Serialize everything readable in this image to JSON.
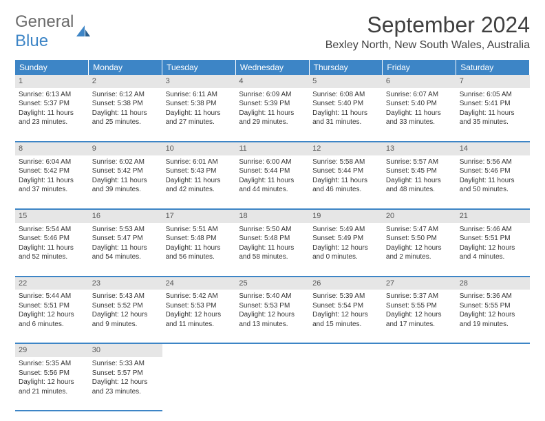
{
  "logo": {
    "word1": "General",
    "word2": "Blue"
  },
  "title": "September 2024",
  "location": "Bexley North, New South Wales, Australia",
  "colors": {
    "header_bg": "#3d85c6",
    "header_fg": "#ffffff",
    "daynum_bg": "#e6e6e6",
    "text": "#333333",
    "title_color": "#404040"
  },
  "dayNames": [
    "Sunday",
    "Monday",
    "Tuesday",
    "Wednesday",
    "Thursday",
    "Friday",
    "Saturday"
  ],
  "weeks": [
    [
      {
        "n": "1",
        "sr": "Sunrise: 6:13 AM",
        "ss": "Sunset: 5:37 PM",
        "d1": "Daylight: 11 hours",
        "d2": "and 23 minutes."
      },
      {
        "n": "2",
        "sr": "Sunrise: 6:12 AM",
        "ss": "Sunset: 5:38 PM",
        "d1": "Daylight: 11 hours",
        "d2": "and 25 minutes."
      },
      {
        "n": "3",
        "sr": "Sunrise: 6:11 AM",
        "ss": "Sunset: 5:38 PM",
        "d1": "Daylight: 11 hours",
        "d2": "and 27 minutes."
      },
      {
        "n": "4",
        "sr": "Sunrise: 6:09 AM",
        "ss": "Sunset: 5:39 PM",
        "d1": "Daylight: 11 hours",
        "d2": "and 29 minutes."
      },
      {
        "n": "5",
        "sr": "Sunrise: 6:08 AM",
        "ss": "Sunset: 5:40 PM",
        "d1": "Daylight: 11 hours",
        "d2": "and 31 minutes."
      },
      {
        "n": "6",
        "sr": "Sunrise: 6:07 AM",
        "ss": "Sunset: 5:40 PM",
        "d1": "Daylight: 11 hours",
        "d2": "and 33 minutes."
      },
      {
        "n": "7",
        "sr": "Sunrise: 6:05 AM",
        "ss": "Sunset: 5:41 PM",
        "d1": "Daylight: 11 hours",
        "d2": "and 35 minutes."
      }
    ],
    [
      {
        "n": "8",
        "sr": "Sunrise: 6:04 AM",
        "ss": "Sunset: 5:42 PM",
        "d1": "Daylight: 11 hours",
        "d2": "and 37 minutes."
      },
      {
        "n": "9",
        "sr": "Sunrise: 6:02 AM",
        "ss": "Sunset: 5:42 PM",
        "d1": "Daylight: 11 hours",
        "d2": "and 39 minutes."
      },
      {
        "n": "10",
        "sr": "Sunrise: 6:01 AM",
        "ss": "Sunset: 5:43 PM",
        "d1": "Daylight: 11 hours",
        "d2": "and 42 minutes."
      },
      {
        "n": "11",
        "sr": "Sunrise: 6:00 AM",
        "ss": "Sunset: 5:44 PM",
        "d1": "Daylight: 11 hours",
        "d2": "and 44 minutes."
      },
      {
        "n": "12",
        "sr": "Sunrise: 5:58 AM",
        "ss": "Sunset: 5:44 PM",
        "d1": "Daylight: 11 hours",
        "d2": "and 46 minutes."
      },
      {
        "n": "13",
        "sr": "Sunrise: 5:57 AM",
        "ss": "Sunset: 5:45 PM",
        "d1": "Daylight: 11 hours",
        "d2": "and 48 minutes."
      },
      {
        "n": "14",
        "sr": "Sunrise: 5:56 AM",
        "ss": "Sunset: 5:46 PM",
        "d1": "Daylight: 11 hours",
        "d2": "and 50 minutes."
      }
    ],
    [
      {
        "n": "15",
        "sr": "Sunrise: 5:54 AM",
        "ss": "Sunset: 5:46 PM",
        "d1": "Daylight: 11 hours",
        "d2": "and 52 minutes."
      },
      {
        "n": "16",
        "sr": "Sunrise: 5:53 AM",
        "ss": "Sunset: 5:47 PM",
        "d1": "Daylight: 11 hours",
        "d2": "and 54 minutes."
      },
      {
        "n": "17",
        "sr": "Sunrise: 5:51 AM",
        "ss": "Sunset: 5:48 PM",
        "d1": "Daylight: 11 hours",
        "d2": "and 56 minutes."
      },
      {
        "n": "18",
        "sr": "Sunrise: 5:50 AM",
        "ss": "Sunset: 5:48 PM",
        "d1": "Daylight: 11 hours",
        "d2": "and 58 minutes."
      },
      {
        "n": "19",
        "sr": "Sunrise: 5:49 AM",
        "ss": "Sunset: 5:49 PM",
        "d1": "Daylight: 12 hours",
        "d2": "and 0 minutes."
      },
      {
        "n": "20",
        "sr": "Sunrise: 5:47 AM",
        "ss": "Sunset: 5:50 PM",
        "d1": "Daylight: 12 hours",
        "d2": "and 2 minutes."
      },
      {
        "n": "21",
        "sr": "Sunrise: 5:46 AM",
        "ss": "Sunset: 5:51 PM",
        "d1": "Daylight: 12 hours",
        "d2": "and 4 minutes."
      }
    ],
    [
      {
        "n": "22",
        "sr": "Sunrise: 5:44 AM",
        "ss": "Sunset: 5:51 PM",
        "d1": "Daylight: 12 hours",
        "d2": "and 6 minutes."
      },
      {
        "n": "23",
        "sr": "Sunrise: 5:43 AM",
        "ss": "Sunset: 5:52 PM",
        "d1": "Daylight: 12 hours",
        "d2": "and 9 minutes."
      },
      {
        "n": "24",
        "sr": "Sunrise: 5:42 AM",
        "ss": "Sunset: 5:53 PM",
        "d1": "Daylight: 12 hours",
        "d2": "and 11 minutes."
      },
      {
        "n": "25",
        "sr": "Sunrise: 5:40 AM",
        "ss": "Sunset: 5:53 PM",
        "d1": "Daylight: 12 hours",
        "d2": "and 13 minutes."
      },
      {
        "n": "26",
        "sr": "Sunrise: 5:39 AM",
        "ss": "Sunset: 5:54 PM",
        "d1": "Daylight: 12 hours",
        "d2": "and 15 minutes."
      },
      {
        "n": "27",
        "sr": "Sunrise: 5:37 AM",
        "ss": "Sunset: 5:55 PM",
        "d1": "Daylight: 12 hours",
        "d2": "and 17 minutes."
      },
      {
        "n": "28",
        "sr": "Sunrise: 5:36 AM",
        "ss": "Sunset: 5:55 PM",
        "d1": "Daylight: 12 hours",
        "d2": "and 19 minutes."
      }
    ],
    [
      {
        "n": "29",
        "sr": "Sunrise: 5:35 AM",
        "ss": "Sunset: 5:56 PM",
        "d1": "Daylight: 12 hours",
        "d2": "and 21 minutes."
      },
      {
        "n": "30",
        "sr": "Sunrise: 5:33 AM",
        "ss": "Sunset: 5:57 PM",
        "d1": "Daylight: 12 hours",
        "d2": "and 23 minutes."
      },
      null,
      null,
      null,
      null,
      null
    ]
  ]
}
